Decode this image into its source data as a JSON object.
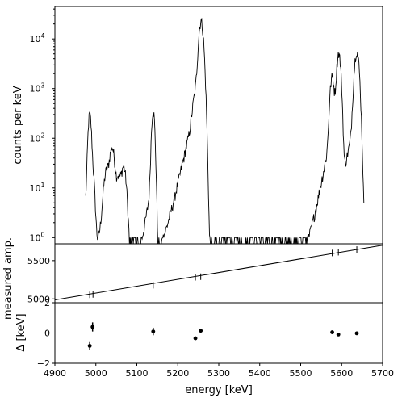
{
  "chart_data": [
    {
      "panel": "spectrum",
      "type": "line",
      "ylabel": "counts per keV",
      "yscale": "log",
      "xlim": [
        4900,
        5700
      ],
      "ylim": [
        0.75,
        45000
      ],
      "y_tick_labels": [
        "10^0",
        "10^1",
        "10^2",
        "10^3",
        "10^4"
      ],
      "y_tick_values": [
        1,
        10,
        100,
        1000,
        10000
      ],
      "peaks": [
        {
          "x": 4985,
          "height": 280,
          "width": 3
        },
        {
          "x": 4991,
          "height": 25,
          "width": 4
        },
        {
          "x": 5027,
          "height": 20,
          "width": 6
        },
        {
          "x": 5040,
          "height": 60,
          "width": 5
        },
        {
          "x": 5055,
          "height": 15,
          "width": 5
        },
        {
          "x": 5068,
          "height": 25,
          "width": 5
        },
        {
          "x": 5140,
          "height": 350,
          "width": 3
        },
        {
          "x": 5245,
          "height": 500,
          "width": 6
        },
        {
          "x": 5257,
          "height": 22000,
          "width": 4.5
        },
        {
          "x": 5577,
          "height": 1600,
          "width": 4
        },
        {
          "x": 5593,
          "height": 5000,
          "width": 4
        },
        {
          "x": 5637,
          "height": 5500,
          "width": 4.5
        }
      ],
      "color": "#000000"
    },
    {
      "panel": "calibration",
      "type": "scatter",
      "ylabel": "measured amp.",
      "xlim": [
        4900,
        5700
      ],
      "ylim": [
        4950,
        5720
      ],
      "y_tick_values": [
        5000,
        5500
      ],
      "y_tick_labels": [
        "5000",
        "5500"
      ],
      "points_x": [
        4985,
        4993,
        5140,
        5243,
        5256,
        5577,
        5592,
        5637
      ],
      "points_y": [
        5053,
        5058,
        5178,
        5282,
        5290,
        5600,
        5610,
        5645
      ],
      "fit_line": {
        "x": [
          4900,
          5700
        ],
        "y": [
          4987,
          5702
        ]
      },
      "color": "#000000"
    },
    {
      "panel": "residuals",
      "type": "scatter",
      "ylabel": "Δ [keV]",
      "xlabel": "energy [keV]",
      "xlim": [
        4900,
        5700
      ],
      "ylim": [
        -2,
        2
      ],
      "y_tick_values": [
        -2,
        0,
        2
      ],
      "y_tick_labels": [
        "−2",
        "0",
        "2"
      ],
      "x_tick_values": [
        4900,
        5000,
        5100,
        5200,
        5300,
        5400,
        5500,
        5600,
        5700
      ],
      "x_tick_labels": [
        "4900",
        "5000",
        "5100",
        "5200",
        "5300",
        "5400",
        "5500",
        "5600",
        "5700"
      ],
      "points_x": [
        4985,
        4992,
        5140,
        5243,
        5256,
        5577,
        5592,
        5637
      ],
      "points_y": [
        -0.85,
        0.4,
        0.1,
        -0.35,
        0.15,
        0.05,
        -0.1,
        -0.02
      ],
      "errors": [
        0.25,
        0.3,
        0.25,
        0.08,
        0.08,
        0.06,
        0.06,
        0.06
      ],
      "zero_line": 0,
      "color": "#000000"
    }
  ]
}
